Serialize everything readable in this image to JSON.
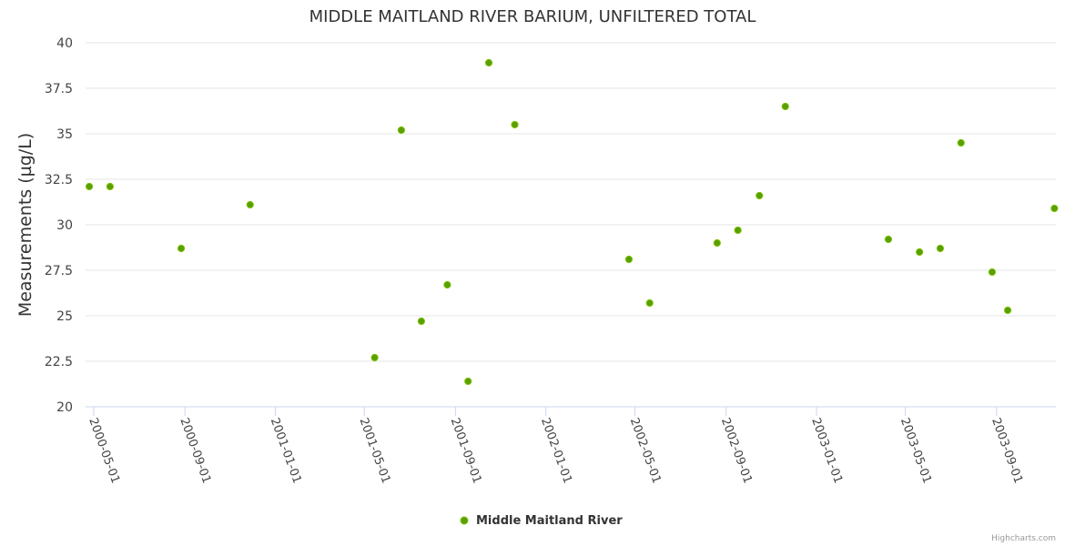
{
  "chart_data": {
    "type": "scatter",
    "title": "MIDDLE MAITLAND RIVER BARIUM, UNFILTERED TOTAL",
    "xlabel": "",
    "ylabel": "Measurements (µg/L)",
    "ylim": [
      20,
      40
    ],
    "yticks": [
      "20",
      "22.5",
      "25",
      "27.5",
      "30",
      "32.5",
      "35",
      "37.5",
      "40"
    ],
    "xticks": [
      "2000-05-01",
      "2000-09-01",
      "2001-01-01",
      "2001-05-01",
      "2001-09-01",
      "2002-01-01",
      "2002-05-01",
      "2002-09-01",
      "2003-01-01",
      "2003-05-01",
      "2003-09-01"
    ],
    "xlim": [
      "2000-04-20",
      "2003-11-20"
    ],
    "grid": true,
    "legend_position": "bottom",
    "series": [
      {
        "name": "Middle Maitland River",
        "color": "#5a9e00",
        "points": [
          {
            "x": "2000-04-25",
            "y": 32.1
          },
          {
            "x": "2000-05-23",
            "y": 32.1
          },
          {
            "x": "2000-08-27",
            "y": 28.7
          },
          {
            "x": "2000-11-28",
            "y": 31.1
          },
          {
            "x": "2001-05-15",
            "y": 22.7
          },
          {
            "x": "2001-06-20",
            "y": 35.2
          },
          {
            "x": "2001-07-17",
            "y": 24.7
          },
          {
            "x": "2001-08-21",
            "y": 26.7
          },
          {
            "x": "2001-09-18",
            "y": 21.4
          },
          {
            "x": "2001-10-16",
            "y": 38.9
          },
          {
            "x": "2001-11-20",
            "y": 35.5
          },
          {
            "x": "2002-04-23",
            "y": 28.1
          },
          {
            "x": "2002-05-21",
            "y": 25.7
          },
          {
            "x": "2002-08-20",
            "y": 29.0
          },
          {
            "x": "2002-09-17",
            "y": 29.7
          },
          {
            "x": "2002-10-16",
            "y": 31.6
          },
          {
            "x": "2002-11-20",
            "y": 36.5
          },
          {
            "x": "2003-04-08",
            "y": 29.2
          },
          {
            "x": "2003-05-20",
            "y": 28.5
          },
          {
            "x": "2003-06-17",
            "y": 28.7
          },
          {
            "x": "2003-07-15",
            "y": 34.5
          },
          {
            "x": "2003-08-26",
            "y": 27.4
          },
          {
            "x": "2003-09-16",
            "y": 25.3
          },
          {
            "x": "2003-11-18",
            "y": 30.9
          }
        ]
      }
    ]
  },
  "credits": "Highcharts.com"
}
